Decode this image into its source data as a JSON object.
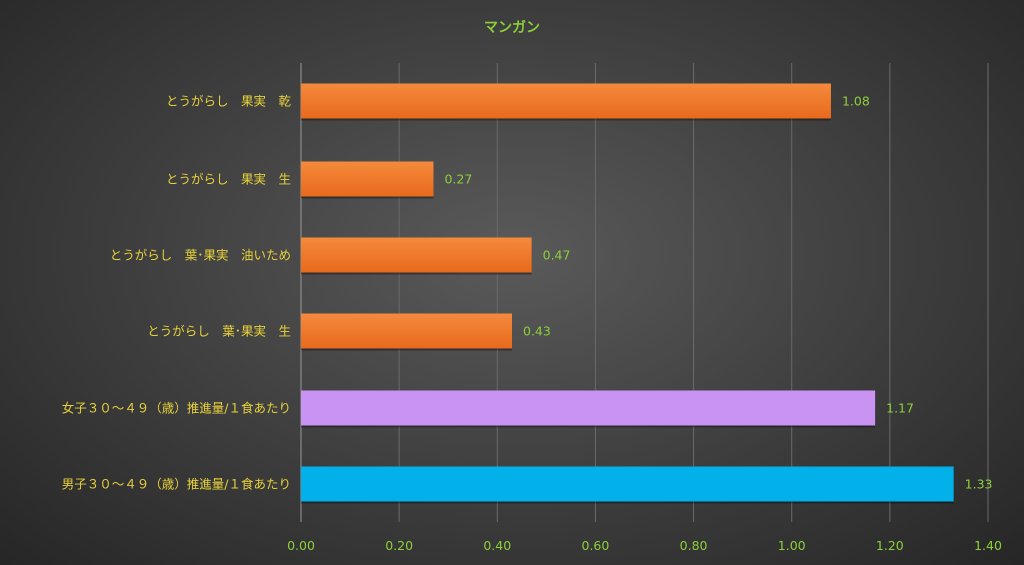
{
  "chart_data": {
    "type": "bar",
    "orientation": "horizontal",
    "title": "マンガン",
    "categories": [
      "とうがらし　果実　乾",
      "とうがらし　果実　生",
      "とうがらし　葉･果実　油いため",
      "とうがらし　葉･果実　生",
      "女子３０～４９（歳）推進量/１食あたり",
      "男子３０～４９（歳）推進量/１食あたり"
    ],
    "values": [
      1.08,
      0.27,
      0.47,
      0.43,
      1.17,
      1.33
    ],
    "value_labels": [
      "1.08",
      "0.27",
      "0.47",
      "0.43",
      "1.17",
      "1.33"
    ],
    "bar_colors": [
      "#f07a28",
      "#f07a28",
      "#f07a28",
      "#f07a28",
      "#c893f2",
      "#02b0ea"
    ],
    "xlim": [
      0,
      1.4
    ],
    "x_ticks": [
      0,
      0.2,
      0.4,
      0.6,
      0.8,
      1.0,
      1.2,
      1.4
    ],
    "x_tick_labels": [
      "0.00",
      "0.20",
      "0.40",
      "0.60",
      "0.80",
      "1.00",
      "1.20",
      "1.40"
    ],
    "grid": true,
    "legend": "none"
  }
}
